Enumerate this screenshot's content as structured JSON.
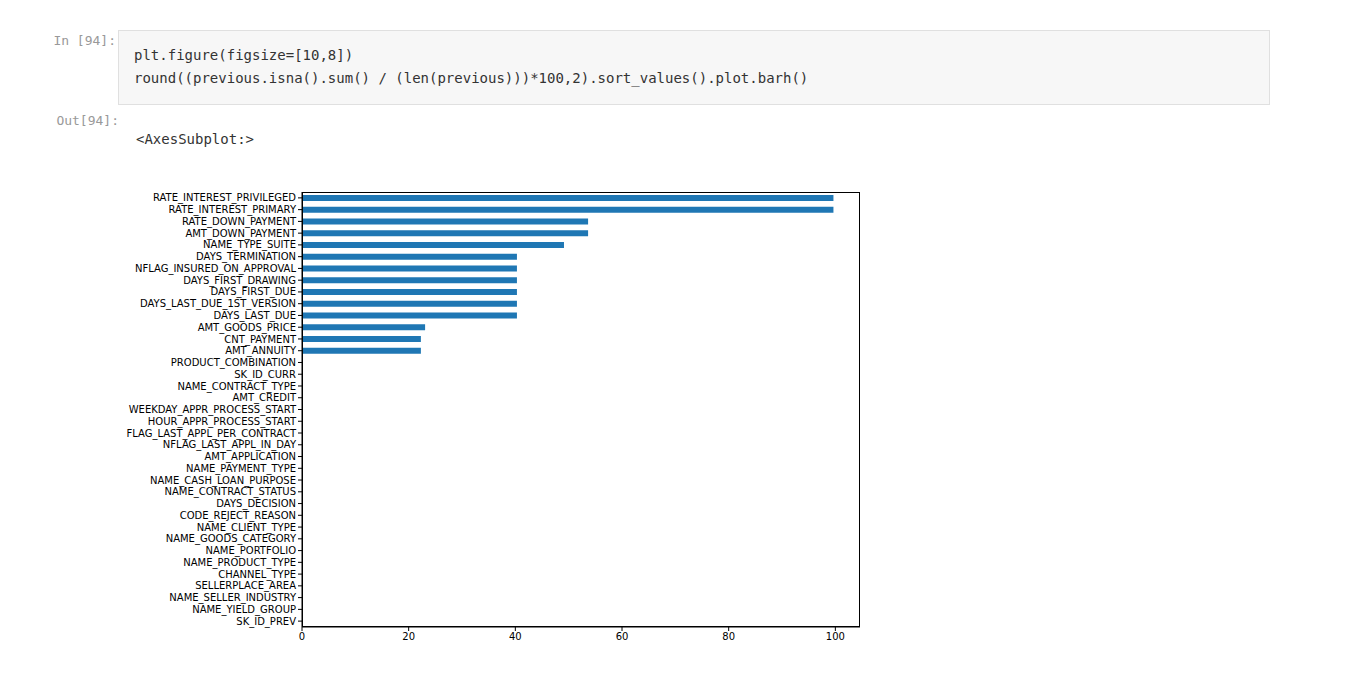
{
  "cell": {
    "input_prompt": "In [94]:",
    "code": [
      "plt.figure(figsize=[10,8])",
      "round((previous.isna().sum() / (len(previous)))*100,2).sort_values().plot.barh()"
    ],
    "output_prompt": "Out[94]:",
    "output_text": "<AxesSubplot:>"
  },
  "chart_data": {
    "type": "bar",
    "orientation": "horizontal",
    "categories": [
      "RATE_INTEREST_PRIVILEGED",
      "RATE_INTEREST_PRIMARY",
      "RATE_DOWN_PAYMENT",
      "AMT_DOWN_PAYMENT",
      "NAME_TYPE_SUITE",
      "DAYS_TERMINATION",
      "NFLAG_INSURED_ON_APPROVAL",
      "DAYS_FIRST_DRAWING",
      "DAYS_FIRST_DUE",
      "DAYS_LAST_DUE_1ST_VERSION",
      "DAYS_LAST_DUE",
      "AMT_GOODS_PRICE",
      "CNT_PAYMENT",
      "AMT_ANNUITY",
      "PRODUCT_COMBINATION",
      "SK_ID_CURR",
      "NAME_CONTRACT_TYPE",
      "AMT_CREDIT",
      "WEEKDAY_APPR_PROCESS_START",
      "HOUR_APPR_PROCESS_START",
      "FLAG_LAST_APPL_PER_CONTRACT",
      "NFLAG_LAST_APPL_IN_DAY",
      "AMT_APPLICATION",
      "NAME_PAYMENT_TYPE",
      "NAME_CASH_LOAN_PURPOSE",
      "NAME_CONTRACT_STATUS",
      "DAYS_DECISION",
      "CODE_REJECT_REASON",
      "NAME_CLIENT_TYPE",
      "NAME_GOODS_CATEGORY",
      "NAME_PORTFOLIO",
      "NAME_PRODUCT_TYPE",
      "CHANNEL_TYPE",
      "SELLERPLACE_AREA",
      "NAME_SELLER_INDUSTRY",
      "NAME_YIELD_GROUP",
      "SK_ID_PREV"
    ],
    "values": [
      99.64,
      99.64,
      53.64,
      53.64,
      49.12,
      40.3,
      40.3,
      40.3,
      40.3,
      40.3,
      40.3,
      23.08,
      22.29,
      22.29,
      0.02,
      0,
      0,
      0,
      0,
      0,
      0,
      0,
      0,
      0,
      0,
      0,
      0,
      0,
      0,
      0,
      0,
      0,
      0,
      0,
      0,
      0,
      0
    ],
    "color": "#1f77b4",
    "xlim": [
      0,
      104.62
    ],
    "xticks": [
      0,
      20,
      40,
      60,
      80,
      100
    ],
    "grid": false
  }
}
